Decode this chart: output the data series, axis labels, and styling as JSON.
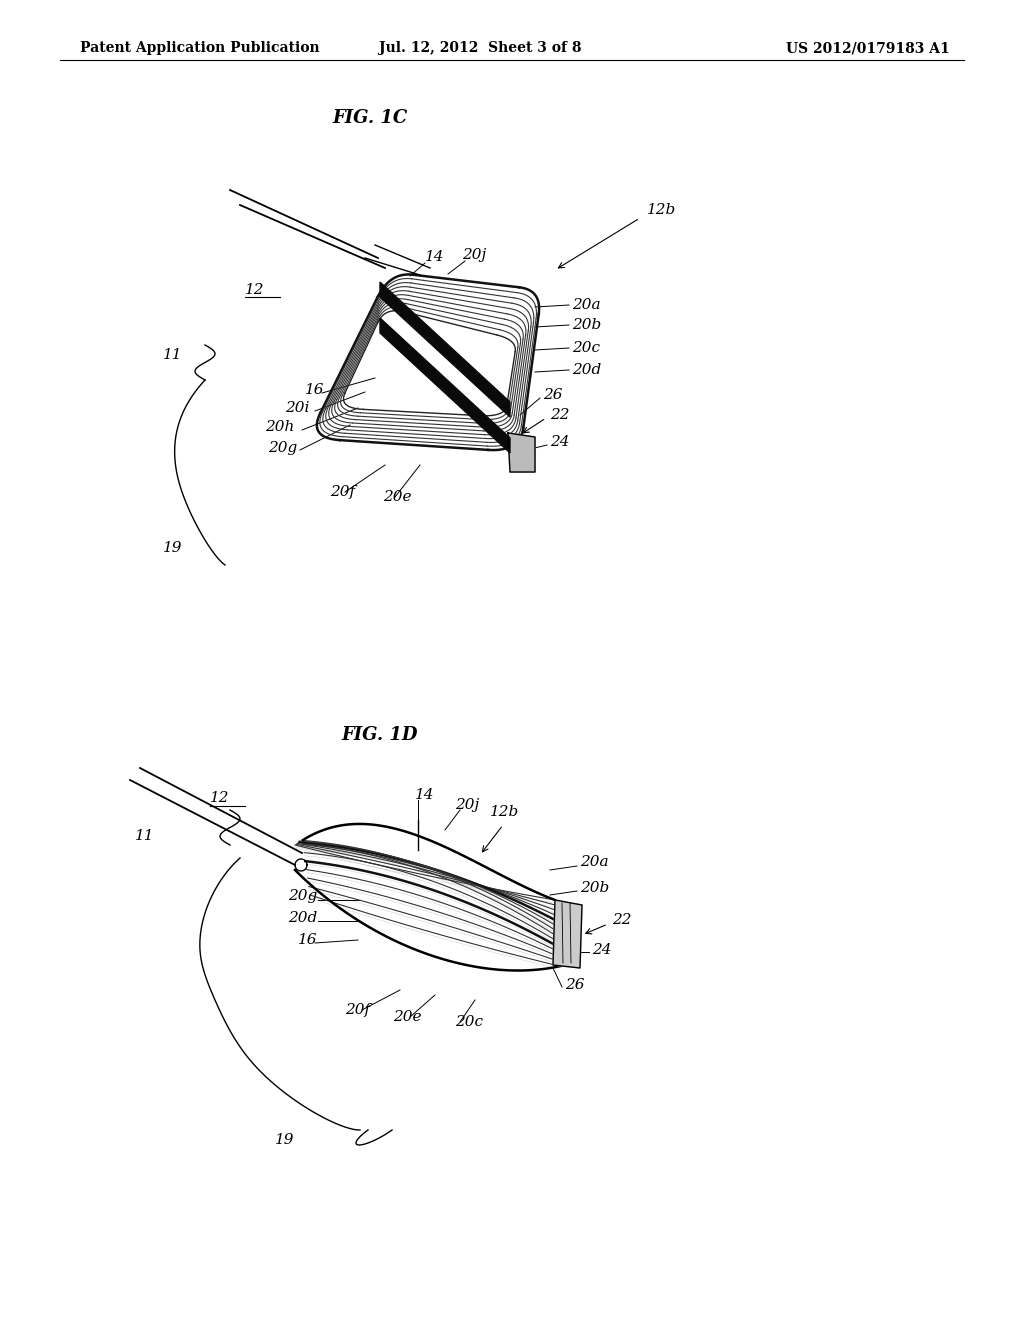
{
  "bg_color": "#ffffff",
  "header_left": "Patent Application Publication",
  "header_mid": "Jul. 12, 2012  Sheet 3 of 8",
  "header_right": "US 2012/0179183 A1",
  "fig1c_title": "FIG. 1C",
  "fig1d_title": "FIG. 1D",
  "header_fontsize": 10,
  "title_fontsize": 13,
  "label_fontsize": 11
}
